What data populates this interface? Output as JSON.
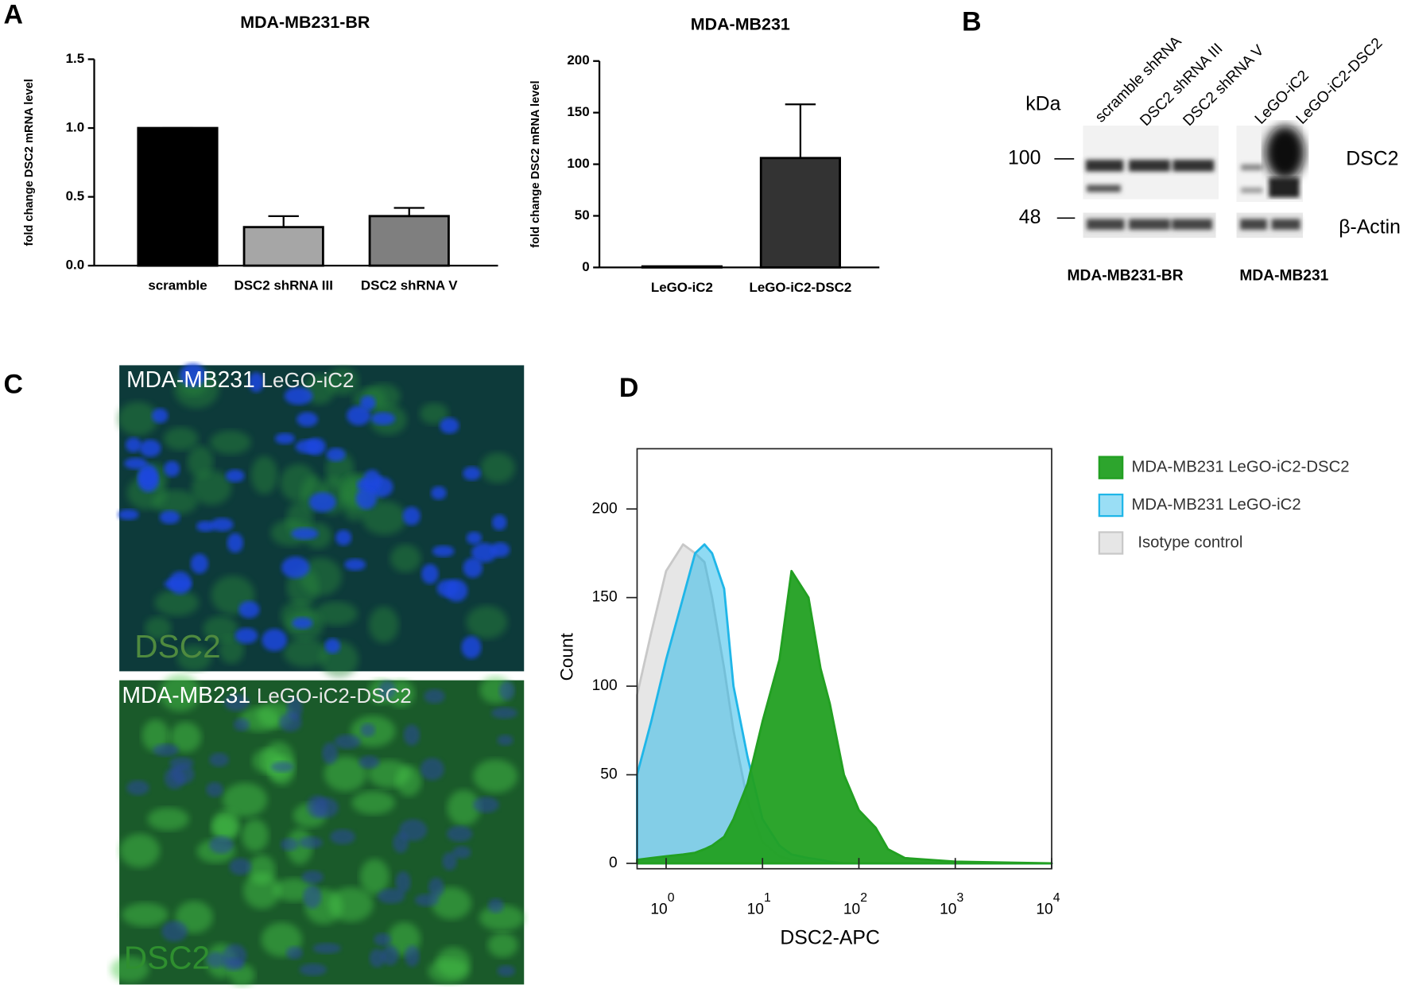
{
  "panel_labels": [
    "A",
    "B",
    "C",
    "D"
  ],
  "chart_data": [
    {
      "type": "bar",
      "title": "MDA-MB231-BR",
      "y_label": "fold change DSC2 mRNA level",
      "categories": [
        "scramble",
        "DSC2 shRNA III",
        "DSC2 shRNA V"
      ],
      "values": [
        1.0,
        0.28,
        0.36
      ],
      "errors": [
        0,
        0.08,
        0.06
      ],
      "colors": [
        "#000000",
        "#a6a6a6",
        "#7f7f7f"
      ],
      "ylim": [
        0,
        1.5
      ],
      "yticks": [
        {
          "value": 0,
          "label": "0.0"
        },
        {
          "value": 0.5,
          "label": "0.5"
        },
        {
          "value": 1,
          "label": "1.0"
        },
        {
          "value": 1.5,
          "label": "1.5"
        }
      ]
    },
    {
      "type": "bar",
      "title": "MDA-MB231",
      "y_label": "fold change DSC2 mRNA level",
      "categories": [
        "LeGO-iC2",
        "LeGO-iC2-DSC2"
      ],
      "values": [
        1,
        106
      ],
      "errors": [
        0,
        52
      ],
      "colors": [
        "#ffffff",
        "#333333"
      ],
      "ylim": [
        0,
        200
      ],
      "yticks": [
        0,
        50,
        100,
        150,
        200
      ]
    },
    {
      "type": "area",
      "x_label": "DSC2-APC",
      "y_label": "Count",
      "log_x": true,
      "legend": "right",
      "x": [
        0.5,
        0.7,
        1,
        1.5,
        2,
        2.5,
        3,
        4,
        5,
        7,
        10,
        15,
        20,
        30,
        40,
        50,
        70,
        100,
        150,
        200,
        300,
        1000,
        10000
      ],
      "series": [
        {
          "name": "MDA-MB231 LeGO-iC2-DSC2",
          "color": "#22a022",
          "values": [
            2,
            3,
            4,
            5,
            6,
            8,
            10,
            15,
            25,
            45,
            80,
            115,
            165,
            150,
            110,
            90,
            50,
            30,
            20,
            8,
            3,
            1,
            0
          ]
        },
        {
          "name": "MDA-MB231 LeGO-iC2",
          "color": "#1fb6e8",
          "values": [
            50,
            80,
            115,
            150,
            175,
            180,
            175,
            155,
            100,
            60,
            25,
            10,
            5,
            3,
            2,
            1,
            0,
            0,
            0,
            0,
            0,
            0,
            0
          ]
        },
        {
          "name": "Isotype control",
          "color": "#c8c8c8",
          "values": [
            95,
            130,
            165,
            180,
            175,
            170,
            150,
            110,
            75,
            35,
            12,
            4,
            2,
            1,
            0,
            0,
            0,
            0,
            0,
            0,
            0,
            0,
            0
          ]
        }
      ],
      "xlim": [
        0.5,
        10000
      ],
      "xticks": [
        {
          "value": 1,
          "label": "10",
          "superscript": "0"
        },
        {
          "value": 10,
          "label": "10",
          "superscript": "1"
        },
        {
          "value": 100,
          "label": "10",
          "superscript": "2"
        },
        {
          "value": 1000,
          "label": "10",
          "superscript": "3"
        },
        {
          "value": 10000,
          "label": "10",
          "superscript": "4"
        }
      ],
      "ylim": [
        0,
        234
      ],
      "yticks": [
        0,
        50,
        100,
        150,
        200
      ]
    }
  ],
  "blot": {
    "kda_label": "kDa",
    "lanes": [
      "scramble shRNA",
      "DSC2 shRNA III",
      "DSC2 shRNA V",
      "LeGO-iC2",
      "LeGO-iC2-DSC2"
    ],
    "markers": [
      100,
      48
    ],
    "proteins": [
      "DSC2",
      "β-Actin"
    ],
    "groups": [
      "MDA-MB231-BR",
      "MDA-MB231"
    ]
  },
  "micrographs": [
    {
      "cell_line": "MDA-MB231",
      "construct": "LeGO-iC2",
      "stain": "DSC2"
    },
    {
      "cell_line": "MDA-MB231",
      "construct": "LeGO-iC2-DSC2",
      "stain": "DSC2"
    }
  ]
}
